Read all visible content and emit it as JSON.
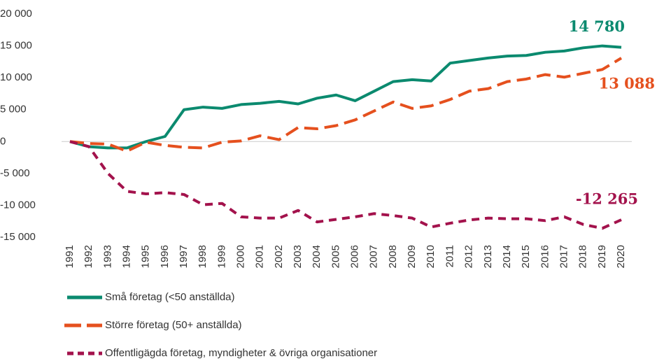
{
  "chart_data": {
    "type": "line",
    "categories": [
      "1991",
      "1992",
      "1993",
      "1994",
      "1995",
      "1996",
      "1997",
      "1998",
      "1999",
      "2000",
      "2001",
      "2002",
      "2003",
      "2004",
      "2005",
      "2006",
      "2007",
      "2008",
      "2009",
      "2010",
      "2011",
      "2012",
      "2013",
      "2014",
      "2015",
      "2016",
      "2017",
      "2018",
      "2019",
      "2020"
    ],
    "series": [
      {
        "name": "Små företag (<50 anställda)",
        "color": "#0b8a6f",
        "dash": "solid",
        "values": [
          0,
          -800,
          -1000,
          -1000,
          0,
          800,
          5000,
          5400,
          5200,
          5800,
          6000,
          6300,
          5900,
          6800,
          7300,
          6400,
          7900,
          9400,
          9700,
          9500,
          12300,
          12700,
          13100,
          13400,
          13500,
          14000,
          14200,
          14700,
          15000,
          14780
        ],
        "value_labels": [
          null,
          null,
          null,
          null,
          null,
          null,
          null,
          null,
          null,
          null,
          null,
          null,
          null,
          null,
          null,
          null,
          null,
          null,
          null,
          null,
          null,
          null,
          null,
          null,
          null,
          null,
          null,
          null,
          null,
          "14 780"
        ]
      },
      {
        "name": "Större företag (50+ anställda)",
        "color": "#e5501e",
        "dash": "long",
        "values": [
          0,
          -300,
          -400,
          -1500,
          -100,
          -600,
          -900,
          -1000,
          -100,
          100,
          900,
          300,
          2200,
          2000,
          2500,
          3400,
          4800,
          6200,
          5200,
          5600,
          6600,
          7900,
          8300,
          9400,
          9800,
          10500,
          10100,
          10700,
          11300,
          13088
        ],
        "value_labels": [
          null,
          null,
          null,
          null,
          null,
          null,
          null,
          null,
          null,
          null,
          null,
          null,
          null,
          null,
          null,
          null,
          null,
          null,
          null,
          null,
          null,
          null,
          null,
          null,
          null,
          null,
          null,
          null,
          null,
          "13 088"
        ]
      },
      {
        "name": "Offentligägda företag, myndigheter & övriga organisationer",
        "color": "#a3124c",
        "dash": "short",
        "values": [
          0,
          -800,
          -5000,
          -7800,
          -8200,
          -8000,
          -8300,
          -9900,
          -9700,
          -11800,
          -12000,
          -12000,
          -10800,
          -12600,
          -12200,
          -11800,
          -11300,
          -11600,
          -12000,
          -13400,
          -12800,
          -12300,
          -12000,
          -12100,
          -12100,
          -12400,
          -11800,
          -13000,
          -13600,
          -12265
        ],
        "value_labels": [
          null,
          null,
          null,
          null,
          null,
          null,
          null,
          null,
          null,
          null,
          null,
          null,
          null,
          null,
          null,
          null,
          null,
          null,
          null,
          null,
          null,
          null,
          null,
          null,
          null,
          null,
          null,
          null,
          null,
          "-12 265"
        ]
      }
    ],
    "ylim": [
      -15000,
      20000
    ],
    "yticks": [
      {
        "value": -15000,
        "label": "-15 000"
      },
      {
        "value": -10000,
        "label": "-10 000"
      },
      {
        "value": -5000,
        "label": "-5 000"
      },
      0,
      {
        "value": 5000,
        "label": "5 000"
      },
      {
        "value": 10000,
        "label": "10 000"
      },
      {
        "value": 15000,
        "label": "15 000"
      },
      {
        "value": 20000,
        "label": "20 000"
      }
    ],
    "grid": false,
    "legend": "bottom-left"
  }
}
